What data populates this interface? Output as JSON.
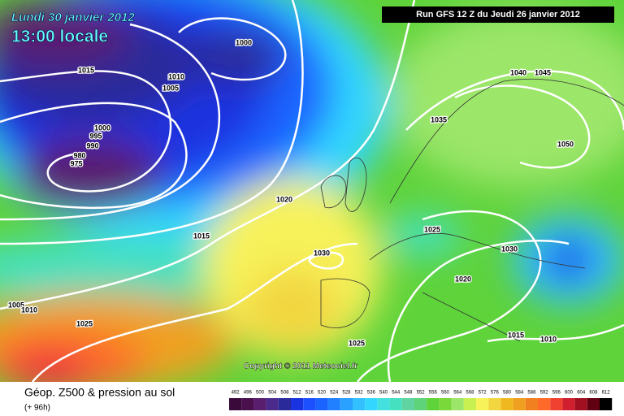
{
  "header": {
    "date": "Lundi 30 janvier 2012",
    "time": "13:00 locale",
    "run": "Run GFS 12 Z du Jeudi 26 janvier 2012"
  },
  "isobar_labels": [
    "1015",
    "1010",
    "1005",
    "1000",
    "1000",
    "995",
    "990",
    "980",
    "975",
    "1020",
    "1015",
    "1030",
    "1025",
    "1005",
    "1010",
    "1025",
    "1035",
    "1040",
    "1045",
    "1050",
    "1025",
    "1030",
    "1020",
    "1015",
    "1010"
  ],
  "copyright": "Copyright © 2011 Meteociel.fr",
  "footer": {
    "title": "Géop. Z500 & pression au sol",
    "lead": "(+ 96h)"
  },
  "legend": {
    "labels": [
      "492",
      "496",
      "500",
      "504",
      "508",
      "512",
      "516",
      "520",
      "524",
      "528",
      "532",
      "536",
      "540",
      "544",
      "548",
      "552",
      "556",
      "560",
      "564",
      "568",
      "572",
      "576",
      "580",
      "584",
      "588",
      "592",
      "596",
      "600",
      "604",
      "608",
      "612"
    ]
  }
}
